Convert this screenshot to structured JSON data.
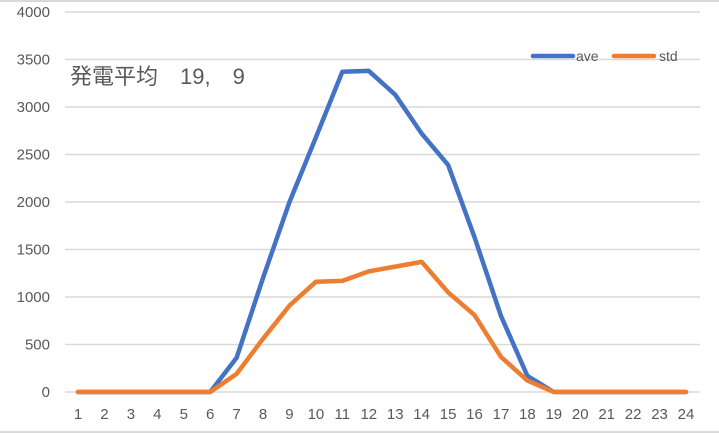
{
  "chart_data": {
    "type": "line",
    "title": "発電平均　19,　9",
    "xlabel": "",
    "ylabel": "",
    "x": [
      1,
      2,
      3,
      4,
      5,
      6,
      7,
      8,
      9,
      10,
      11,
      12,
      13,
      14,
      15,
      16,
      17,
      18,
      19,
      20,
      21,
      22,
      23,
      24
    ],
    "ylim": [
      0,
      4000
    ],
    "yticks": [
      0,
      500,
      1000,
      1500,
      2000,
      2500,
      3000,
      3500,
      4000
    ],
    "grid": true,
    "legend_position": "top-right",
    "series": [
      {
        "name": "ave",
        "color": "#4472c4",
        "values": [
          0,
          0,
          0,
          0,
          0,
          0,
          360,
          1200,
          2000,
          2680,
          3370,
          3380,
          3130,
          2720,
          2390,
          1630,
          800,
          170,
          0,
          0,
          0,
          0,
          0,
          0
        ]
      },
      {
        "name": "std",
        "color": "#ed7d31",
        "values": [
          0,
          0,
          0,
          0,
          0,
          0,
          190,
          560,
          910,
          1160,
          1170,
          1270,
          1320,
          1370,
          1050,
          810,
          370,
          120,
          0,
          0,
          0,
          0,
          0,
          0
        ]
      }
    ]
  }
}
